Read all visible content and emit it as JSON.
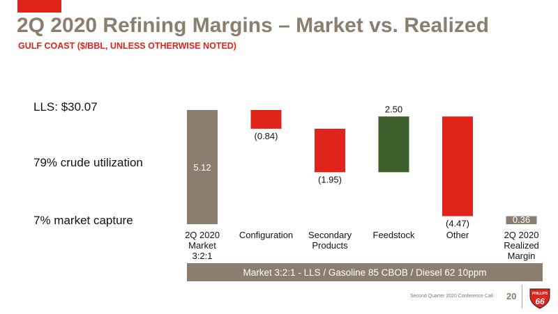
{
  "slide": {
    "title": "2Q 2020 Refining Margins – Market vs. Realized",
    "subtitle": "GULF COAST ($/BBL, UNLESS OTHERWISE NOTED)"
  },
  "stats": [
    "LLS: $30.07",
    "79% crude utilization",
    "7% market capture"
  ],
  "chart_data": {
    "type": "bar",
    "subtype": "waterfall",
    "categories": [
      [
        "2Q 2020",
        "Market",
        "3:2:1"
      ],
      [
        "Configuration"
      ],
      [
        "Secondary",
        "Products"
      ],
      [
        "Feedstock"
      ],
      [
        "Other"
      ],
      [
        "2Q 2020",
        "Realized",
        "Margin"
      ]
    ],
    "values": [
      5.12,
      -0.84,
      -1.95,
      2.5,
      -4.47,
      0.36
    ],
    "value_labels": [
      "5.12",
      "(0.84)",
      "(1.95)",
      "2.50",
      "(4.47)",
      "0.36"
    ],
    "bar_kinds": [
      "total",
      "delta",
      "delta",
      "delta",
      "delta",
      "total"
    ],
    "ylim": [
      0,
      5.12
    ],
    "grid": false,
    "colors": {
      "total": "#8b7e6e",
      "decrease": "#e0241b",
      "increase": "#3b5e2b"
    }
  },
  "caption": "Market 3:2:1 - LLS / Gasoline 85 CBOB / Diesel 62 10ppm",
  "footer": {
    "event": "Second Quarter 2020 Conference Call",
    "page": "20",
    "logo_text": "PHILLIPS 66",
    "logo_colors": {
      "shield": "#e0241b",
      "text": "#ffffff"
    }
  }
}
